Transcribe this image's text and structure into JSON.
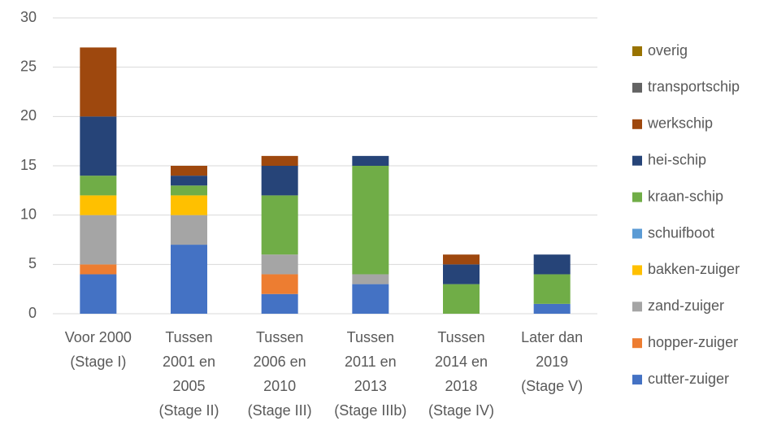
{
  "chart_data": {
    "type": "stacked_bar",
    "categories": [
      [
        "Voor 2000",
        "(Stage I)"
      ],
      [
        "Tussen",
        "2001 en",
        "2005",
        "(Stage II)"
      ],
      [
        "Tussen",
        "2006 en",
        "2010",
        "(Stage III)"
      ],
      [
        "Tussen",
        "2011 en",
        "2013",
        "(Stage IIIb)"
      ],
      [
        "Tussen",
        "2014 en",
        "2018",
        "(Stage IV)"
      ],
      [
        "Later dan",
        "2019",
        "(Stage V)"
      ]
    ],
    "series": [
      {
        "name": "cutter-zuiger",
        "color": "#4472c4",
        "values": [
          4,
          7,
          2,
          3,
          0,
          1
        ]
      },
      {
        "name": "hopper-zuiger",
        "color": "#ed7d31",
        "values": [
          1,
          0,
          2,
          0,
          0,
          0
        ]
      },
      {
        "name": "zand-zuiger",
        "color": "#a5a5a5",
        "values": [
          5,
          3,
          2,
          1,
          0,
          0
        ]
      },
      {
        "name": "bakken-zuiger",
        "color": "#ffc000",
        "values": [
          2,
          2,
          0,
          0,
          0,
          0
        ]
      },
      {
        "name": "schuifboot",
        "color": "#5b9bd5",
        "values": [
          0,
          0,
          0,
          0,
          0,
          0
        ]
      },
      {
        "name": "kraan-schip",
        "color": "#70ad47",
        "values": [
          2,
          1,
          6,
          11,
          3,
          3
        ]
      },
      {
        "name": "hei-schip",
        "color": "#264478",
        "values": [
          6,
          1,
          3,
          1,
          2,
          2
        ]
      },
      {
        "name": "werkschip",
        "color": "#9e480e",
        "values": [
          7,
          1,
          1,
          0,
          1,
          0
        ]
      },
      {
        "name": "transportschip",
        "color": "#636363",
        "values": [
          0,
          0,
          0,
          0,
          0,
          0
        ]
      },
      {
        "name": "overig",
        "color": "#997300",
        "values": [
          0,
          0,
          0,
          0,
          0,
          0
        ]
      }
    ],
    "ylim": [
      0,
      30
    ],
    "yticks": [
      0,
      5,
      10,
      15,
      20,
      25,
      30
    ],
    "grid": true,
    "legend": "right"
  }
}
